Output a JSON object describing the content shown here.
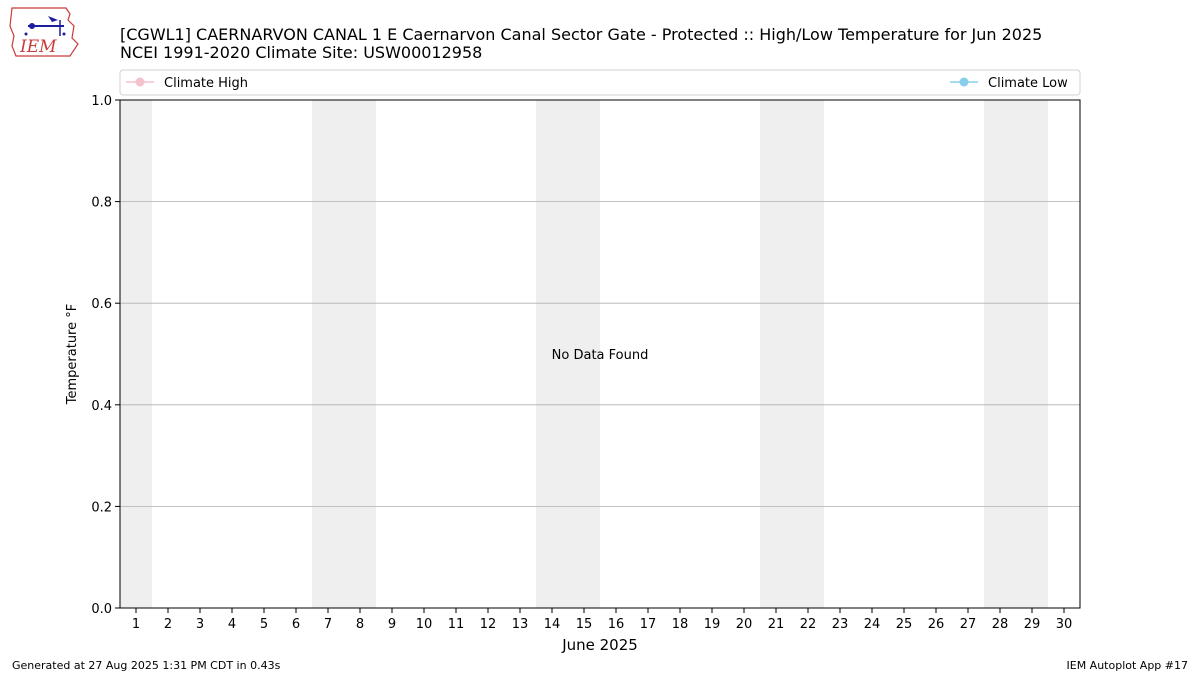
{
  "header": {
    "logo_text": "IEM",
    "title_line_1": "[CGWL1] CAERNARVON CANAL 1 E Caernarvon Canal Sector Gate - Protected :: High/Low Temperature for Jun 2025",
    "title_line_2": "NCEI 1991-2020 Climate Site: USW00012958"
  },
  "footer": {
    "left": "Generated at 27 Aug 2025 1:31 PM CDT in 0.43s",
    "right": "IEM Autoplot App #17"
  },
  "chart_data": {
    "type": "line",
    "title": "[CGWL1] CAERNARVON CANAL 1 E Caernarvon Canal Sector Gate - Protected :: High/Low Temperature for Jun 2025",
    "subtitle": "NCEI 1991-2020 Climate Site: USW00012958",
    "xlabel": "June 2025",
    "ylabel": "Temperature °F",
    "xlim": [
      0.5,
      30.5
    ],
    "ylim": [
      0.0,
      1.0
    ],
    "x_ticks": [
      1,
      2,
      3,
      4,
      5,
      6,
      7,
      8,
      9,
      10,
      11,
      12,
      13,
      14,
      15,
      16,
      17,
      18,
      19,
      20,
      21,
      22,
      23,
      24,
      25,
      26,
      27,
      28,
      29,
      30
    ],
    "y_ticks": [
      0.0,
      0.2,
      0.4,
      0.6,
      0.8,
      1.0
    ],
    "grid": "horizontal",
    "weekend_shading": [
      [
        0.5,
        1.5
      ],
      [
        6.5,
        8.5
      ],
      [
        13.5,
        15.5
      ],
      [
        20.5,
        22.5
      ],
      [
        27.5,
        29.5
      ]
    ],
    "shading_color": "#efefef",
    "annotation": "No Data Found",
    "legend": {
      "placement": "top"
    },
    "series": [
      {
        "name": "Climate High",
        "color": "#f4c2cd",
        "values": []
      },
      {
        "name": "Climate Low",
        "color": "#87ceeb",
        "values": []
      }
    ]
  }
}
